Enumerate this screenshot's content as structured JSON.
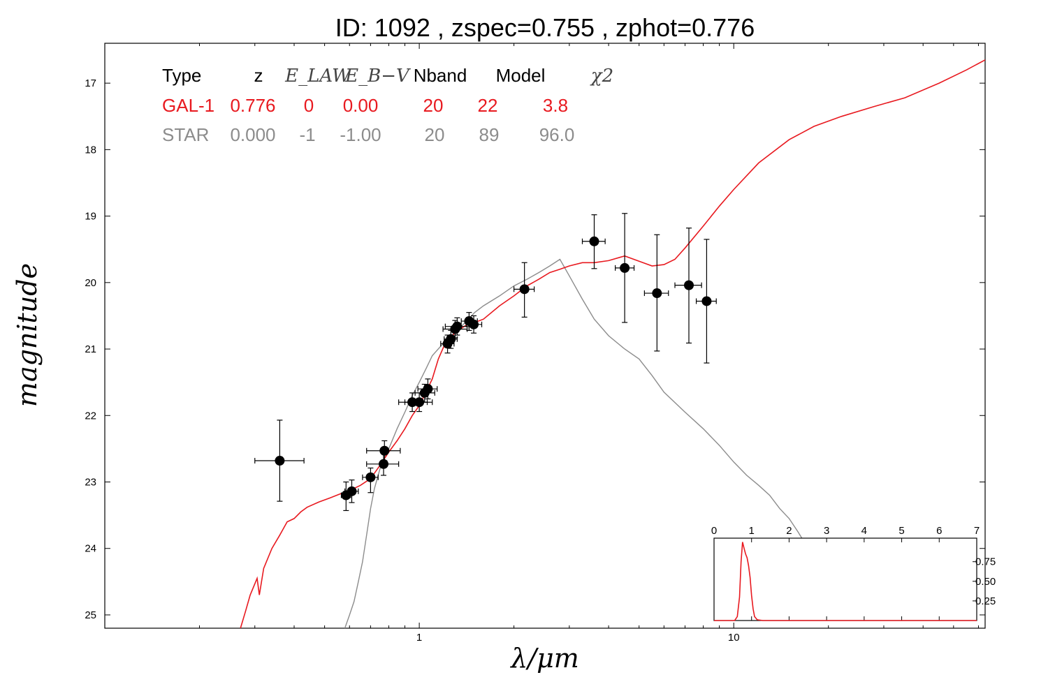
{
  "chart_data": {
    "type": "scatter",
    "title": "ID:  1092  , zspec=0.755 , zphot=0.776",
    "xlabel": "λ/μm",
    "ylabel": "magnitude",
    "x_scale": "log",
    "xlim": [
      0.1,
      63
    ],
    "ylim": [
      25.2,
      16.4
    ],
    "y_inverted": true,
    "x_ticks": [
      1,
      10
    ],
    "y_ticks": [
      17,
      18,
      19,
      20,
      21,
      22,
      23,
      24,
      25
    ],
    "colors": {
      "galaxy": "#e8191f",
      "star": "#8c8c8c",
      "points": "#000000"
    },
    "points": [
      {
        "x": 0.36,
        "y": 22.68,
        "xerr": [
          0.3,
          0.43
        ],
        "yerr": [
          22.07,
          23.29
        ]
      },
      {
        "x": 0.585,
        "y": 23.2,
        "xerr": [
          0.565,
          0.605
        ],
        "yerr": [
          23.0,
          23.43
        ]
      },
      {
        "x": 0.61,
        "y": 23.14,
        "xerr": [
          0.58,
          0.64
        ],
        "yerr": [
          22.97,
          23.31
        ]
      },
      {
        "x": 0.7,
        "y": 22.93,
        "xerr": [
          0.66,
          0.74
        ],
        "yerr": [
          22.79,
          23.16
        ]
      },
      {
        "x": 0.775,
        "y": 22.53,
        "xerr": [
          0.68,
          0.87
        ],
        "yerr": [
          22.38,
          22.68
        ]
      },
      {
        "x": 0.77,
        "y": 22.73,
        "xerr": [
          0.68,
          0.86
        ],
        "yerr": [
          22.57,
          22.9
        ]
      },
      {
        "x": 0.95,
        "y": 21.8,
        "xerr": [
          0.86,
          1.06
        ],
        "yerr": [
          21.66,
          21.94
        ]
      },
      {
        "x": 1.0,
        "y": 21.8,
        "xerr": [
          0.9,
          1.1
        ],
        "yerr": [
          21.66,
          21.94
        ]
      },
      {
        "x": 1.04,
        "y": 21.66,
        "xerr": [
          0.97,
          1.12
        ],
        "yerr": [
          21.53,
          21.8
        ]
      },
      {
        "x": 1.065,
        "y": 21.6,
        "xerr": [
          0.99,
          1.14
        ],
        "yerr": [
          21.45,
          21.75
        ]
      },
      {
        "x": 1.23,
        "y": 20.92,
        "xerr": [
          1.17,
          1.29
        ],
        "yerr": [
          20.79,
          21.06
        ]
      },
      {
        "x": 1.26,
        "y": 20.85,
        "xerr": [
          1.2,
          1.32
        ],
        "yerr": [
          20.72,
          20.99
        ]
      },
      {
        "x": 1.3,
        "y": 20.7,
        "xerr": [
          1.19,
          1.42
        ],
        "yerr": [
          20.57,
          20.83
        ]
      },
      {
        "x": 1.32,
        "y": 20.66,
        "xerr": [
          1.21,
          1.44
        ],
        "yerr": [
          20.53,
          20.79
        ]
      },
      {
        "x": 1.44,
        "y": 20.58,
        "xerr": [
          1.36,
          1.53
        ],
        "yerr": [
          20.45,
          20.72
        ]
      },
      {
        "x": 1.49,
        "y": 20.63,
        "xerr": [
          1.41,
          1.58
        ],
        "yerr": [
          20.5,
          20.76
        ]
      },
      {
        "x": 2.16,
        "y": 20.1,
        "xerr": [
          2.0,
          2.32
        ],
        "yerr": [
          19.7,
          20.52
        ]
      },
      {
        "x": 3.6,
        "y": 19.38,
        "xerr": [
          3.3,
          3.9
        ],
        "yerr": [
          18.98,
          19.79
        ]
      },
      {
        "x": 4.5,
        "y": 19.78,
        "xerr": [
          4.2,
          4.82
        ],
        "yerr": [
          18.96,
          20.6
        ]
      },
      {
        "x": 5.7,
        "y": 20.16,
        "xerr": [
          5.2,
          6.2
        ],
        "yerr": [
          19.28,
          21.03
        ]
      },
      {
        "x": 7.2,
        "y": 20.04,
        "xerr": [
          6.5,
          7.9
        ],
        "yerr": [
          19.18,
          20.91
        ]
      },
      {
        "x": 8.2,
        "y": 20.28,
        "xerr": [
          7.6,
          8.8
        ],
        "yerr": [
          19.35,
          21.21
        ]
      }
    ],
    "table": {
      "headers": [
        "Type",
        "z",
        "E_LAW",
        "E_B−V",
        "Nband",
        "Model",
        "χ2"
      ],
      "rows": [
        {
          "type": "GAL-1",
          "z": "0.776",
          "elaw": "0",
          "ebv": "0.00",
          "nband": "20",
          "model": "22",
          "chi2": "3.8"
        },
        {
          "type": "STAR",
          "z": "0.000",
          "elaw": "-1",
          "ebv": "-1.00",
          "nband": "20",
          "model": "89",
          "chi2": "96.0"
        }
      ]
    },
    "galaxy_curve": [
      [
        0.27,
        25.2
      ],
      [
        0.28,
        24.95
      ],
      [
        0.29,
        24.7
      ],
      [
        0.305,
        24.45
      ],
      [
        0.31,
        24.7
      ],
      [
        0.32,
        24.3
      ],
      [
        0.34,
        24.0
      ],
      [
        0.36,
        23.8
      ],
      [
        0.38,
        23.6
      ],
      [
        0.4,
        23.55
      ],
      [
        0.42,
        23.45
      ],
      [
        0.44,
        23.38
      ],
      [
        0.48,
        23.3
      ],
      [
        0.52,
        23.24
      ],
      [
        0.56,
        23.18
      ],
      [
        0.6,
        23.13
      ],
      [
        0.65,
        23.05
      ],
      [
        0.7,
        22.95
      ],
      [
        0.75,
        22.75
      ],
      [
        0.8,
        22.55
      ],
      [
        0.85,
        22.38
      ],
      [
        0.9,
        22.2
      ],
      [
        0.95,
        22.0
      ],
      [
        1.0,
        21.85
      ],
      [
        1.05,
        21.65
      ],
      [
        1.1,
        21.45
      ],
      [
        1.15,
        21.15
      ],
      [
        1.2,
        20.95
      ],
      [
        1.3,
        20.75
      ],
      [
        1.4,
        20.65
      ],
      [
        1.5,
        20.6
      ],
      [
        1.6,
        20.55
      ],
      [
        1.8,
        20.35
      ],
      [
        2.0,
        20.2
      ],
      [
        2.2,
        20.05
      ],
      [
        2.4,
        19.95
      ],
      [
        2.6,
        19.85
      ],
      [
        2.8,
        19.8
      ],
      [
        3.0,
        19.75
      ],
      [
        3.3,
        19.7
      ],
      [
        3.6,
        19.7
      ],
      [
        4.0,
        19.67
      ],
      [
        4.5,
        19.6
      ],
      [
        5.0,
        19.68
      ],
      [
        5.5,
        19.75
      ],
      [
        6.0,
        19.73
      ],
      [
        6.5,
        19.65
      ],
      [
        7.0,
        19.48
      ],
      [
        8.0,
        19.15
      ],
      [
        9.0,
        18.85
      ],
      [
        10.0,
        18.6
      ],
      [
        12.0,
        18.2
      ],
      [
        15.0,
        17.85
      ],
      [
        18.0,
        17.65
      ],
      [
        22.0,
        17.5
      ],
      [
        28.0,
        17.35
      ],
      [
        35.0,
        17.22
      ],
      [
        45.0,
        17.0
      ],
      [
        55.0,
        16.8
      ],
      [
        63.0,
        16.65
      ]
    ],
    "star_curve": [
      [
        0.58,
        25.2
      ],
      [
        0.6,
        25.0
      ],
      [
        0.62,
        24.8
      ],
      [
        0.64,
        24.5
      ],
      [
        0.66,
        24.2
      ],
      [
        0.68,
        23.8
      ],
      [
        0.7,
        23.4
      ],
      [
        0.72,
        23.1
      ],
      [
        0.75,
        22.8
      ],
      [
        0.8,
        22.5
      ],
      [
        0.85,
        22.2
      ],
      [
        0.9,
        21.95
      ],
      [
        0.95,
        21.7
      ],
      [
        1.0,
        21.5
      ],
      [
        1.05,
        21.3
      ],
      [
        1.1,
        21.1
      ],
      [
        1.2,
        20.9
      ],
      [
        1.3,
        20.75
      ],
      [
        1.4,
        20.6
      ],
      [
        1.5,
        20.45
      ],
      [
        1.6,
        20.35
      ],
      [
        1.8,
        20.2
      ],
      [
        2.0,
        20.05
      ],
      [
        2.2,
        19.95
      ],
      [
        2.4,
        19.85
      ],
      [
        2.6,
        19.75
      ],
      [
        2.8,
        19.65
      ],
      [
        3.0,
        19.9
      ],
      [
        3.3,
        20.25
      ],
      [
        3.6,
        20.55
      ],
      [
        4.0,
        20.8
      ],
      [
        4.5,
        21.0
      ],
      [
        5.0,
        21.15
      ],
      [
        5.5,
        21.4
      ],
      [
        6.0,
        21.65
      ],
      [
        7.0,
        21.95
      ],
      [
        8.0,
        22.2
      ],
      [
        9.0,
        22.45
      ],
      [
        10.0,
        22.7
      ],
      [
        11.0,
        22.9
      ],
      [
        12.0,
        23.05
      ],
      [
        13.0,
        23.2
      ],
      [
        14.0,
        23.4
      ],
      [
        15.0,
        23.55
      ],
      [
        16.0,
        23.75
      ],
      [
        17.0,
        23.95
      ]
    ],
    "inset": {
      "x_ticks": [
        0,
        1,
        2,
        3,
        4,
        5,
        6,
        7
      ],
      "y_ticks": [
        0.25,
        0.5,
        0.75
      ],
      "y_tick_labels": [
        "0.25",
        "0.50",
        "0.75"
      ],
      "xlim": [
        0,
        7
      ],
      "ylim": [
        0,
        1.05
      ],
      "curve": [
        [
          0,
          0
        ],
        [
          0.55,
          0
        ],
        [
          0.62,
          0.05
        ],
        [
          0.68,
          0.3
        ],
        [
          0.72,
          0.75
        ],
        [
          0.76,
          1.0
        ],
        [
          0.8,
          0.92
        ],
        [
          0.84,
          0.85
        ],
        [
          0.88,
          0.8
        ],
        [
          0.92,
          0.7
        ],
        [
          0.96,
          0.55
        ],
        [
          1.0,
          0.32
        ],
        [
          1.04,
          0.15
        ],
        [
          1.08,
          0.05
        ],
        [
          1.15,
          0.01
        ],
        [
          1.3,
          0
        ],
        [
          7,
          0
        ]
      ]
    }
  }
}
